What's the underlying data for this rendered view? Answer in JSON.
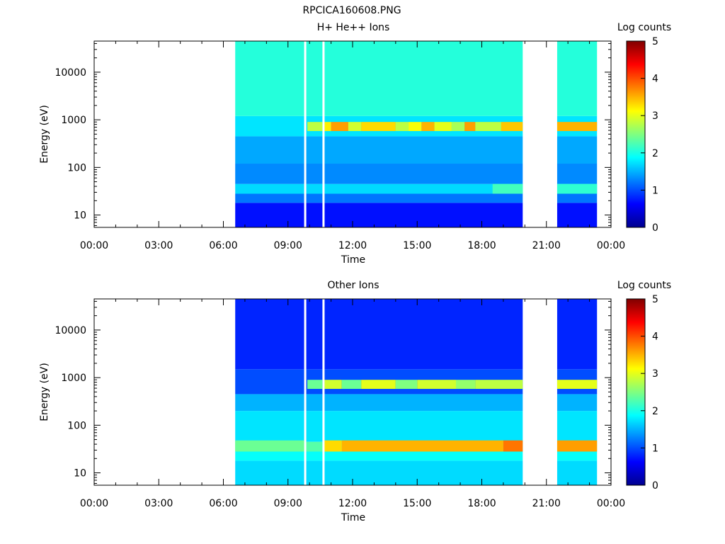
{
  "figure_title": "RPCICA160608.PNG",
  "chart_data": [
    {
      "type": "heatmap",
      "title": "H+ He++ Ions",
      "xlabel": "Time",
      "ylabel": "Energy (eV)",
      "x_ticks": [
        "00:00",
        "03:00",
        "06:00",
        "09:00",
        "12:00",
        "15:00",
        "18:00",
        "21:00",
        "00:00"
      ],
      "x_range_hours": [
        0,
        24
      ],
      "y_ticks": [
        "10",
        "100",
        "1000",
        "10000"
      ],
      "y_scale": "log",
      "y_range_ev": [
        5.5,
        45000
      ],
      "colorbar": {
        "label": "Log counts",
        "range": [
          0,
          5
        ],
        "ticks": [
          "0",
          "1",
          "2",
          "3",
          "4",
          "5"
        ]
      },
      "data_intervals_hours": [
        [
          6.55,
          9.75
        ],
        [
          9.85,
          10.6
        ],
        [
          10.7,
          19.9
        ],
        [
          21.5,
          23.35
        ]
      ],
      "background_log_counts": [
        {
          "energy_ev": [
            5.5,
            18
          ],
          "log_counts": 0.7
        },
        {
          "energy_ev": [
            18,
            28
          ],
          "log_counts": 1.2
        },
        {
          "energy_ev": [
            28,
            45
          ],
          "log_counts": 1.7
        },
        {
          "energy_ev": [
            45,
            120
          ],
          "log_counts": 1.3
        },
        {
          "energy_ev": [
            120,
            450
          ],
          "log_counts": 1.45
        },
        {
          "energy_ev": [
            450,
            1200
          ],
          "log_counts": 1.75
        },
        {
          "energy_ev": [
            1200,
            45000
          ],
          "log_counts": 2.05
        }
      ],
      "bands": [
        {
          "name": "proton peak",
          "energy_ev": [
            580,
            900
          ],
          "log_counts": [
            {
              "t": [
                9.9,
                10.6
              ],
              "v": 2.8
            },
            {
              "t": [
                10.7,
                11.0
              ],
              "v": 3.2
            },
            {
              "t": [
                11.0,
                11.8
              ],
              "v": 3.6
            },
            {
              "t": [
                11.8,
                12.4
              ],
              "v": 2.9
            },
            {
              "t": [
                12.4,
                14.0
              ],
              "v": 3.3
            },
            {
              "t": [
                14.0,
                14.6
              ],
              "v": 2.8
            },
            {
              "t": [
                14.6,
                15.2
              ],
              "v": 3.1
            },
            {
              "t": [
                15.2,
                15.8
              ],
              "v": 3.5
            },
            {
              "t": [
                15.8,
                16.6
              ],
              "v": 3.0
            },
            {
              "t": [
                16.6,
                17.2
              ],
              "v": 2.7
            },
            {
              "t": [
                17.2,
                17.7
              ],
              "v": 3.6
            },
            {
              "t": [
                17.7,
                18.9
              ],
              "v": 2.8
            },
            {
              "t": [
                18.9,
                19.9
              ],
              "v": 3.4
            },
            {
              "t": [
                21.5,
                23.35
              ],
              "v": 3.5
            }
          ]
        },
        {
          "name": "low energy band",
          "energy_ev": [
            28,
            45
          ],
          "log_counts": [
            {
              "t": [
                18.5,
                19.9
              ],
              "v": 2.2
            },
            {
              "t": [
                21.5,
                23.35
              ],
              "v": 2.1
            }
          ]
        }
      ]
    },
    {
      "type": "heatmap",
      "title": "Other Ions",
      "xlabel": "Time",
      "ylabel": "Energy (eV)",
      "x_ticks": [
        "00:00",
        "03:00",
        "06:00",
        "09:00",
        "12:00",
        "15:00",
        "18:00",
        "21:00",
        "00:00"
      ],
      "x_range_hours": [
        0,
        24
      ],
      "y_ticks": [
        "10",
        "100",
        "1000",
        "10000"
      ],
      "y_scale": "log",
      "y_range_ev": [
        5.5,
        45000
      ],
      "colorbar": {
        "label": "Log counts",
        "range": [
          0,
          5
        ],
        "ticks": [
          "0",
          "1",
          "2",
          "3",
          "4",
          "5"
        ]
      },
      "data_intervals_hours": [
        [
          6.55,
          9.75
        ],
        [
          9.85,
          10.6
        ],
        [
          10.7,
          19.9
        ],
        [
          21.5,
          23.35
        ]
      ],
      "background_log_counts": [
        {
          "energy_ev": [
            5.5,
            18
          ],
          "log_counts": 1.7
        },
        {
          "energy_ev": [
            18,
            28
          ],
          "log_counts": 1.9
        },
        {
          "energy_ev": [
            28,
            45
          ],
          "log_counts": 2.3
        },
        {
          "energy_ev": [
            45,
            200
          ],
          "log_counts": 1.75
        },
        {
          "energy_ev": [
            200,
            450
          ],
          "log_counts": 1.5
        },
        {
          "energy_ev": [
            450,
            1500
          ],
          "log_counts": 1.0
        },
        {
          "energy_ev": [
            1500,
            45000
          ],
          "log_counts": 0.8
        }
      ],
      "bands": [
        {
          "name": "heavy ion peak",
          "energy_ev": [
            580,
            900
          ],
          "log_counts": [
            {
              "t": [
                9.9,
                10.6
              ],
              "v": 2.4
            },
            {
              "t": [
                10.7,
                11.5
              ],
              "v": 2.9
            },
            {
              "t": [
                11.5,
                12.4
              ],
              "v": 2.4
            },
            {
              "t": [
                12.4,
                14.0
              ],
              "v": 3.0
            },
            {
              "t": [
                14.0,
                15.0
              ],
              "v": 2.5
            },
            {
              "t": [
                15.0,
                16.8
              ],
              "v": 2.9
            },
            {
              "t": [
                16.8,
                17.7
              ],
              "v": 2.6
            },
            {
              "t": [
                17.7,
                19.9
              ],
              "v": 2.8
            },
            {
              "t": [
                21.5,
                23.35
              ],
              "v": 3.0
            }
          ]
        },
        {
          "name": "low energy peak",
          "energy_ev": [
            28,
            48
          ],
          "log_counts": [
            {
              "t": [
                6.55,
                9.75
              ],
              "v": 2.4
            },
            {
              "t": [
                10.7,
                11.5
              ],
              "v": 3.3
            },
            {
              "t": [
                11.5,
                19.0
              ],
              "v": 3.5
            },
            {
              "t": [
                19.0,
                19.9
              ],
              "v": 3.8
            },
            {
              "t": [
                21.5,
                23.35
              ],
              "v": 3.6
            }
          ]
        }
      ]
    }
  ]
}
